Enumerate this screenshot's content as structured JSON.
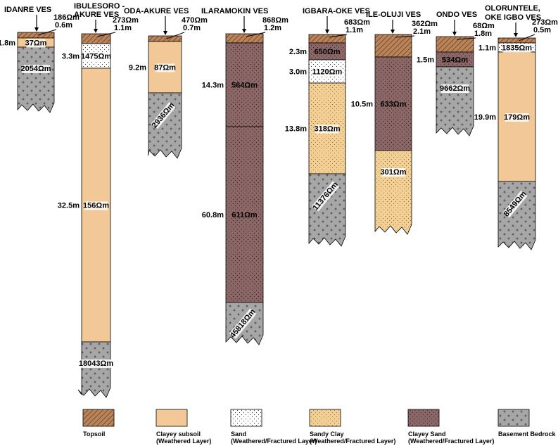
{
  "figure": {
    "resistivity_unit": "Ω",
    "sites": [
      {
        "title_lines": [
          "IDANRE VES"
        ],
        "top": {
          "value": "186",
          "thickness": "0.6m"
        },
        "layers": [
          {
            "value": "37",
            "type": "clayey",
            "thickness": "1.8m"
          },
          {
            "value": "2054",
            "type": "bedrock",
            "thickness": ""
          }
        ]
      },
      {
        "title_lines": [
          "IBULESORO -",
          "AKURE VES"
        ],
        "top": {
          "value": "273",
          "thickness": "1.1m"
        },
        "layers": [
          {
            "value": "1475",
            "type": "sand",
            "thickness": "3.3m"
          },
          {
            "value": "156",
            "type": "clayey",
            "thickness": "32.5m"
          },
          {
            "value": "18043",
            "type": "bedrock",
            "thickness": ""
          }
        ]
      },
      {
        "title_lines": [
          "ODA-AKURE VES"
        ],
        "top": {
          "value": "470",
          "thickness": "0.7m"
        },
        "layers": [
          {
            "value": "87",
            "type": "clayey",
            "thickness": "9.2m"
          },
          {
            "value": "2936",
            "type": "bedrock",
            "thickness": ""
          }
        ]
      },
      {
        "title_lines": [
          "ILARAMOKIN VES"
        ],
        "top": {
          "value": "868",
          "thickness": "1.2m"
        },
        "layers": [
          {
            "value": "564",
            "type": "clayeysand",
            "thickness": "14.3m"
          },
          {
            "value": "611",
            "type": "clayeysand",
            "thickness": "60.8m"
          },
          {
            "value": "45818",
            "type": "bedrock",
            "thickness": ""
          }
        ]
      },
      {
        "title_lines": [
          "IGBARA-OKE VES"
        ],
        "top": {
          "value": "683",
          "thickness": "1.1m"
        },
        "layers": [
          {
            "value": "650",
            "type": "clayeysand",
            "thickness": "2.3m"
          },
          {
            "value": "1120",
            "type": "sand",
            "thickness": "3.0m"
          },
          {
            "value": "318",
            "type": "sandyclay",
            "thickness": "13.8m"
          },
          {
            "value": "11376",
            "type": "bedrock",
            "thickness": ""
          }
        ]
      },
      {
        "title_lines": [
          "ILE-OLUJI VES"
        ],
        "top": {
          "value": "362",
          "thickness": "2.1m"
        },
        "layers": [
          {
            "value": "633",
            "type": "clayeysand",
            "thickness": "10.5m"
          },
          {
            "value": "301",
            "type": "sandyclay",
            "thickness": ""
          }
        ]
      },
      {
        "title_lines": [
          "ONDO VES"
        ],
        "top": {
          "value": "68",
          "thickness": "1.8m"
        },
        "layers": [
          {
            "value": "534",
            "type": "clayeysand",
            "thickness": "1.5m"
          },
          {
            "value": "9662",
            "type": "bedrock",
            "thickness": ""
          }
        ]
      },
      {
        "title_lines": [
          "OLORUNTELE,",
          "OKE IGBO VES"
        ],
        "top": {
          "value": "273",
          "thickness": "0.5m"
        },
        "layers": [
          {
            "value": "1835",
            "type": "sand",
            "thickness": "1.1m"
          },
          {
            "value": "179",
            "type": "clayey",
            "thickness": "19.9m"
          },
          {
            "value": "8549",
            "type": "bedrock",
            "thickness": ""
          }
        ]
      }
    ]
  },
  "legend": [
    {
      "type": "topsoil",
      "lines": [
        "Topsoil"
      ]
    },
    {
      "type": "clayey",
      "lines": [
        "Clayey subsoil",
        "(Weathered Layer)"
      ]
    },
    {
      "type": "sand",
      "lines": [
        "Sand",
        "(Weathered/Fractured Layer)"
      ]
    },
    {
      "type": "sandyclay",
      "lines": [
        "Sandy Clay",
        "(Weathered/Fractured Layer)"
      ]
    },
    {
      "type": "clayeysand",
      "lines": [
        "Clayey Sand",
        "(Weathered/Fractured Layer)"
      ]
    },
    {
      "type": "bedrock",
      "lines": [
        "Basement Bedrock"
      ]
    }
  ],
  "colors": {
    "topsoil": "#b9845a",
    "clayey": "#f1c896",
    "sand": "#ffffff",
    "sandyclay": "#f2cf94",
    "clayeysand": "#8a6666",
    "bedrock": "#a6a6a6",
    "outline": "#000000"
  }
}
